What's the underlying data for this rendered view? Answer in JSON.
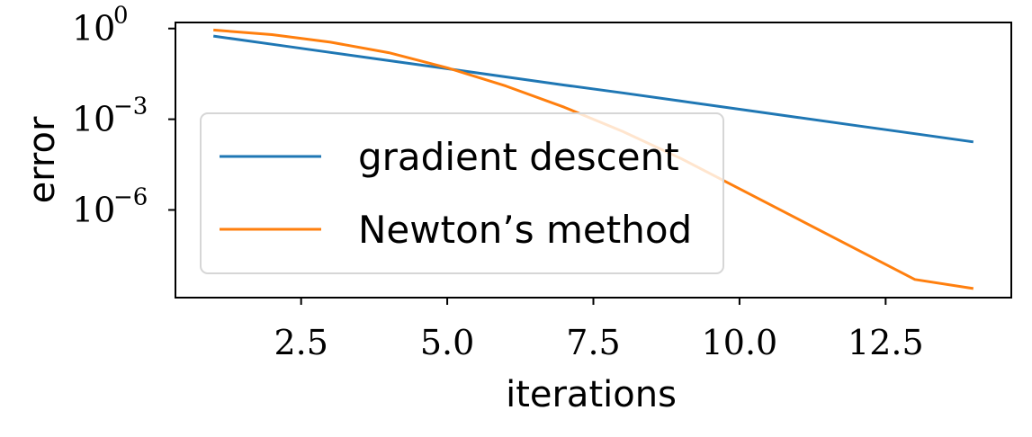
{
  "chart_data": {
    "type": "line",
    "title": "",
    "xlabel": "iterations",
    "ylabel": "error",
    "yscale": "log",
    "xlim": [
      0.35,
      14.65
    ],
    "ylim_log10": [
      -8.9,
      0.2
    ],
    "x_ticks": [
      "2.5",
      "5.0",
      "7.5",
      "10.0",
      "12.5"
    ],
    "x_tick_values": [
      2.5,
      5.0,
      7.5,
      10.0,
      12.5
    ],
    "y_ticks": [
      {
        "base": "10",
        "exp": "0",
        "value_log10": 0
      },
      {
        "base": "10",
        "exp": "−3",
        "value_log10": -3
      },
      {
        "base": "10",
        "exp": "−6",
        "value_log10": -6
      }
    ],
    "grid": false,
    "legend_position": "lower-left",
    "series": [
      {
        "name": "gradient descent",
        "color": "#1f77b4",
        "x": [
          1,
          2,
          3,
          4,
          5,
          6,
          7,
          8,
          9,
          10,
          11,
          12,
          13,
          14
        ],
        "y_log10": [
          -0.25,
          -0.52,
          -0.79,
          -1.06,
          -1.33,
          -1.6,
          -1.87,
          -2.13,
          -2.4,
          -2.67,
          -2.94,
          -3.21,
          -3.48,
          -3.75
        ]
      },
      {
        "name": "Newton’s method",
        "color": "#ff7f0e",
        "x": [
          1,
          2,
          3,
          4,
          5,
          6,
          7,
          8,
          9,
          10,
          11,
          12,
          13,
          14
        ],
        "y_log10": [
          -0.05,
          -0.2,
          -0.45,
          -0.8,
          -1.3,
          -1.9,
          -2.6,
          -3.4,
          -4.3,
          -5.3,
          -6.3,
          -7.3,
          -8.3,
          -8.6
        ]
      }
    ]
  }
}
